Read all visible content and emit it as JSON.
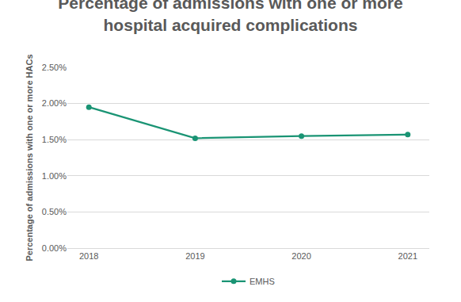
{
  "chart_data": {
    "type": "line",
    "title": "Percentage of admissions with one or more hospital acquired complications",
    "y_label": "Percentage of admissions with one or more HACs",
    "categories": [
      "2018",
      "2019",
      "2020",
      "2021"
    ],
    "series": [
      {
        "name": "EMHS",
        "color": "#1a9474",
        "values": [
          1.95,
          1.52,
          1.55,
          1.57
        ],
        "marker": "circle",
        "line_style": "solid"
      }
    ],
    "ylim": [
      0,
      2.5
    ],
    "yticks": [
      {
        "value": 0,
        "label": "0.00%"
      },
      {
        "value": 0.5,
        "label": "0.50%"
      },
      {
        "value": 1,
        "label": "1.00%"
      },
      {
        "value": 1.5,
        "label": "1.50%"
      },
      {
        "value": 2,
        "label": "2.00%"
      },
      {
        "value": 2.5,
        "label": "2.50%"
      }
    ],
    "grid": true,
    "legend": "bottom"
  }
}
